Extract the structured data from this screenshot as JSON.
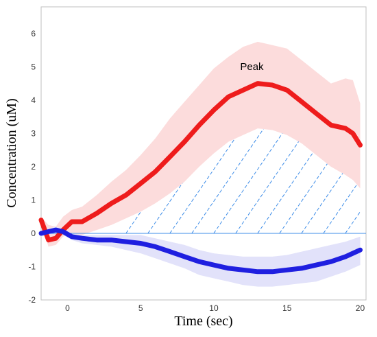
{
  "chart_data": {
    "type": "line",
    "title": "",
    "xlabel": "Time (sec)",
    "ylabel": "Concentration (uM)",
    "xlim": [
      -1.8,
      20.4
    ],
    "ylim": [
      -2,
      6.8
    ],
    "xticks": [
      0,
      5,
      10,
      15,
      20
    ],
    "yticks": [
      -2,
      -1,
      0,
      1,
      2,
      3,
      4,
      5,
      6
    ],
    "grid": false,
    "legend": "none",
    "annotations": [
      {
        "text": "Peak",
        "x": 12.6,
        "y": 4.9
      }
    ],
    "colors": {
      "series_red": "#ee1c1c",
      "band_red": "#fcdcdc",
      "series_blue": "#1f1fe0",
      "band_blue": "#e2e2fa",
      "hatch": "#3c8ce8",
      "baseline": "#3c8ce8"
    },
    "hatch": {
      "x_start": 4,
      "x_end": 20,
      "y": 0
    },
    "series": [
      {
        "x": [
          -1.8,
          -1.3,
          -0.8,
          -0.3,
          0.3,
          1,
          2,
          3,
          4,
          5,
          6,
          7,
          8,
          9,
          10,
          11,
          12,
          13,
          14,
          15,
          16,
          17,
          18,
          19,
          19.5,
          20
        ],
        "values": [
          0.4,
          -0.2,
          -0.15,
          0.1,
          0.35,
          0.35,
          0.6,
          0.9,
          1.15,
          1.5,
          1.85,
          2.3,
          2.75,
          3.25,
          3.7,
          4.1,
          4.3,
          4.5,
          4.45,
          4.3,
          3.95,
          3.6,
          3.25,
          3.15,
          3.0,
          2.65
        ],
        "band_upper": [
          0.5,
          0.25,
          0.2,
          0.5,
          0.7,
          0.8,
          1.15,
          1.55,
          1.9,
          2.35,
          2.85,
          3.45,
          3.95,
          4.45,
          4.95,
          5.3,
          5.6,
          5.75,
          5.65,
          5.55,
          5.2,
          4.85,
          4.5,
          4.65,
          4.6,
          3.9
        ],
        "band_lower": [
          0.3,
          -0.4,
          -0.35,
          -0.1,
          0.0,
          -0.05,
          0.1,
          0.25,
          0.45,
          0.65,
          0.9,
          1.2,
          1.55,
          2.0,
          2.4,
          2.75,
          2.95,
          3.15,
          3.1,
          2.95,
          2.7,
          2.35,
          2.0,
          1.75,
          1.6,
          1.35
        ]
      },
      {
        "x": [
          -1.8,
          -1.3,
          -0.8,
          -0.3,
          0.3,
          1,
          2,
          3,
          4,
          5,
          6,
          7,
          8,
          9,
          10,
          11,
          12,
          13,
          14,
          15,
          16,
          17,
          18,
          19,
          20
        ],
        "values": [
          0.0,
          0.05,
          0.1,
          0.05,
          -0.1,
          -0.15,
          -0.2,
          -0.2,
          -0.25,
          -0.3,
          -0.4,
          -0.55,
          -0.7,
          -0.85,
          -0.95,
          -1.05,
          -1.1,
          -1.15,
          -1.15,
          -1.1,
          -1.05,
          -0.95,
          -0.85,
          -0.7,
          -0.5
        ],
        "band_upper": [
          0.1,
          0.15,
          0.2,
          0.15,
          0.0,
          -0.05,
          -0.05,
          -0.05,
          -0.05,
          -0.05,
          -0.15,
          -0.25,
          -0.35,
          -0.5,
          -0.6,
          -0.65,
          -0.7,
          -0.7,
          -0.7,
          -0.65,
          -0.55,
          -0.45,
          -0.35,
          -0.25,
          -0.1
        ],
        "band_lower": [
          -0.1,
          -0.05,
          0.0,
          -0.05,
          -0.2,
          -0.3,
          -0.35,
          -0.4,
          -0.5,
          -0.6,
          -0.75,
          -0.9,
          -1.05,
          -1.25,
          -1.35,
          -1.45,
          -1.55,
          -1.6,
          -1.6,
          -1.55,
          -1.5,
          -1.45,
          -1.3,
          -1.15,
          -0.95
        ]
      }
    ]
  }
}
